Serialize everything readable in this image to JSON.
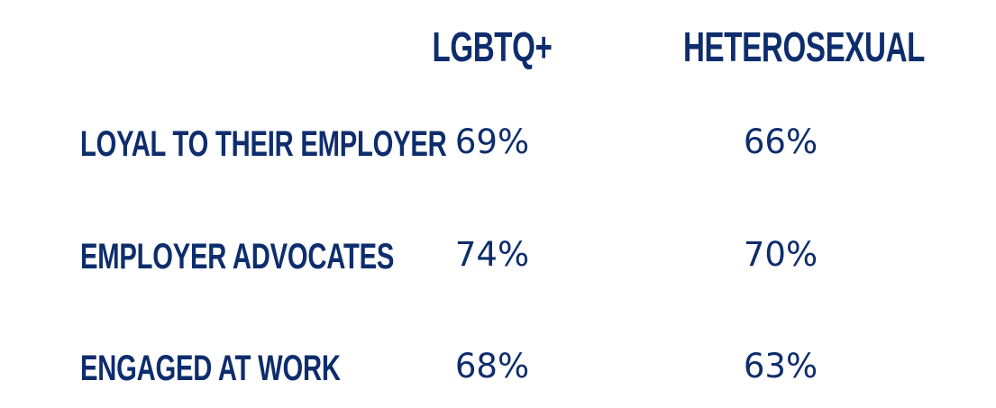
{
  "chart_data": {
    "type": "table",
    "columns": [
      "LGBTQ+",
      "HETEROSEXUAL"
    ],
    "rows": [
      {
        "label": "LOYAL TO THEIR EMPLOYER",
        "values": [
          "69%",
          "66%"
        ]
      },
      {
        "label": "EMPLOYER ADVOCATES",
        "values": [
          "74%",
          "70%"
        ]
      },
      {
        "label": "ENGAGED AT WORK",
        "values": [
          "68%",
          "63%"
        ]
      }
    ],
    "colors": {
      "text": "#0e2d6d",
      "background": "#ffffff"
    }
  }
}
